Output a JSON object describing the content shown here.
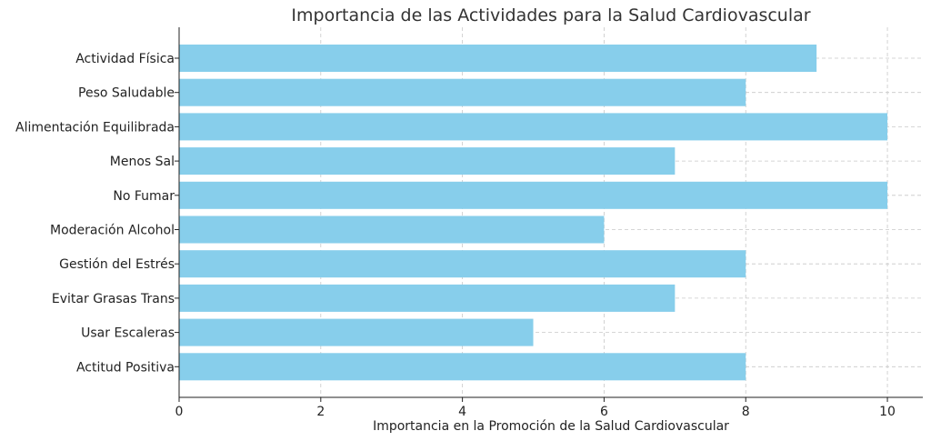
{
  "chart_data": {
    "type": "bar",
    "orientation": "horizontal",
    "title": "Importancia de las Actividades para la Salud Cardiovascular",
    "xlabel": "Importancia en la Promoción de la Salud Cardiovascular",
    "ylabel": "",
    "categories": [
      "Actividad Física",
      "Peso Saludable",
      "Alimentación Equilibrada",
      "Menos Sal",
      "No Fumar",
      "Moderación Alcohol",
      "Gestión del Estrés",
      "Evitar Grasas Trans",
      "Usar Escaleras",
      "Actitud Positiva"
    ],
    "values": [
      9,
      8,
      10,
      7,
      10,
      6,
      8,
      7,
      5,
      8
    ],
    "xlim": [
      0,
      10.5
    ],
    "xticks": [
      "0",
      "2",
      "4",
      "6",
      "8",
      "10"
    ],
    "grid": true,
    "bar_color": "#87ceeb"
  }
}
